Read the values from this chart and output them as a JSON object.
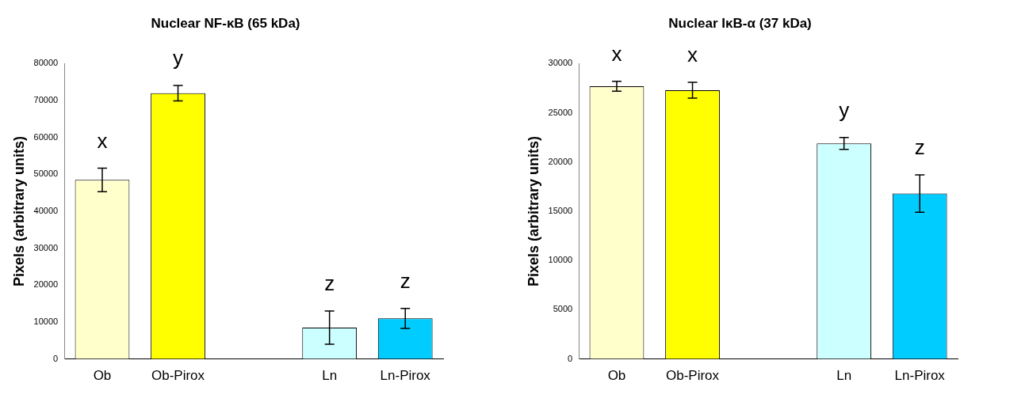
{
  "chart_data": [
    {
      "type": "bar",
      "title": "Nuclear NF-κB (65 kDa)",
      "ylabel": "Pixels (arbitrary units)",
      "categories": [
        "Ob",
        "Ob-Pirox",
        null,
        "Ln",
        "Ln-Pirox"
      ],
      "values": [
        48500,
        72000,
        null,
        8500,
        11000
      ],
      "errors": [
        3200,
        2100,
        null,
        4500,
        2700
      ],
      "colors": [
        "#ffffcc",
        "#ffff00",
        "#ffffff",
        "#ccffff",
        "#00ccff"
      ],
      "ylim": [
        0,
        80000
      ],
      "yticks": [
        0,
        10000,
        20000,
        30000,
        40000,
        50000,
        60000,
        70000,
        80000
      ],
      "annotations": [
        {
          "text": "x",
          "x": "Ob",
          "y": 48500
        },
        {
          "text": "y",
          "x": "Ob-Pirox",
          "y": 72000
        },
        {
          "text": "z",
          "x": "Ln",
          "y": 8500
        },
        {
          "text": "z",
          "x": "Ln-Pirox",
          "y": 11000
        }
      ]
    },
    {
      "type": "bar",
      "title": "Nuclear IκB-α (37 kDa)",
      "ylabel": "Pixels (arbitrary units)",
      "categories": [
        "Ob",
        "Ob-Pirox",
        null,
        "Ln",
        "Ln-Pirox"
      ],
      "values": [
        27700,
        27300,
        null,
        21900,
        16800
      ],
      "errors": [
        500,
        800,
        null,
        600,
        1900
      ],
      "colors": [
        "#ffffcc",
        "#ffff00",
        "#ffffff",
        "#ccffff",
        "#00ccff"
      ],
      "ylim": [
        0,
        30000
      ],
      "yticks": [
        0,
        5000,
        10000,
        15000,
        20000,
        25000,
        30000
      ],
      "annotations": [
        {
          "text": "x",
          "x": "Ob",
          "y": 27700
        },
        {
          "text": "x",
          "x": "Ob-Pirox",
          "y": 27300
        },
        {
          "text": "y",
          "x": "Ln",
          "y": 21900
        },
        {
          "text": "z",
          "x": "Ln-Pirox",
          "y": 16800
        }
      ]
    }
  ]
}
